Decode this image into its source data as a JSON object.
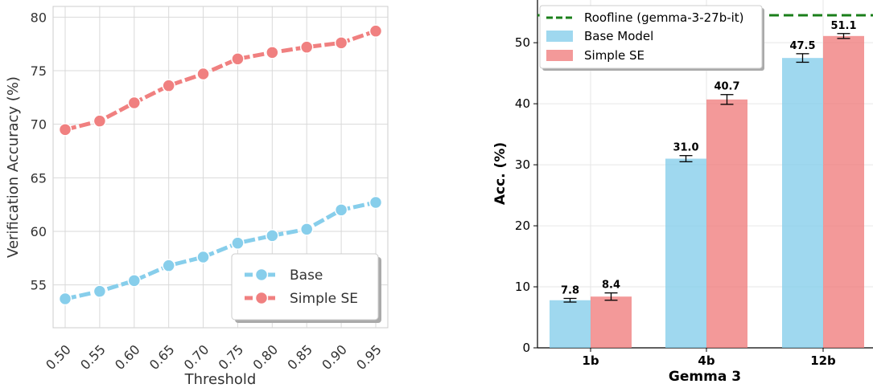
{
  "chart_data": [
    {
      "type": "line",
      "xlabel": "Threshold",
      "ylabel": "Verification Accuracy (%)",
      "x": [
        0.5,
        0.55,
        0.6,
        0.65,
        0.7,
        0.75,
        0.8,
        0.85,
        0.9,
        0.95
      ],
      "x_tick_labels": [
        "0.50",
        "0.55",
        "0.60",
        "0.65",
        "0.70",
        "0.75",
        "0.80",
        "0.85",
        "0.90",
        "0.95"
      ],
      "ylim": [
        51,
        81
      ],
      "y_ticks": [
        55,
        60,
        65,
        70,
        75,
        80
      ],
      "grid": true,
      "legend_position": "lower-right",
      "series": [
        {
          "name": "Base",
          "color": "#87CEEB",
          "values": [
            53.7,
            54.4,
            55.4,
            56.8,
            57.6,
            58.9,
            59.6,
            60.2,
            62.0,
            62.7
          ]
        },
        {
          "name": "Simple SE",
          "color": "#F08080",
          "values": [
            69.5,
            70.3,
            72.0,
            73.6,
            74.7,
            76.1,
            76.7,
            77.2,
            77.6,
            78.7
          ]
        }
      ]
    },
    {
      "type": "bar",
      "title": "",
      "xlabel": "Gemma 3",
      "ylabel": "Acc. (%)",
      "categories": [
        "1b",
        "4b",
        "12b"
      ],
      "ylim": [
        0,
        57
      ],
      "y_ticks": [
        0,
        10,
        20,
        30,
        40,
        50
      ],
      "grid": true,
      "legend_position": "top-left",
      "series": [
        {
          "name": "Base Model",
          "color": "#87CEEB",
          "values": [
            7.8,
            31.0,
            47.5
          ],
          "labels": [
            "7.8",
            "31.0",
            "47.5"
          ],
          "errors": [
            0.3,
            0.5,
            0.7
          ]
        },
        {
          "name": "Simple SE",
          "color": "#F08080",
          "values": [
            8.4,
            40.7,
            51.1
          ],
          "labels": [
            "8.4",
            "40.7",
            "51.1"
          ],
          "errors": [
            0.6,
            0.8,
            0.4
          ]
        }
      ],
      "reference_line": {
        "name": "Roofline (gemma-3-27b-it)",
        "value": 54.5,
        "color": "#1a7f1a",
        "style": "dashed"
      }
    }
  ]
}
